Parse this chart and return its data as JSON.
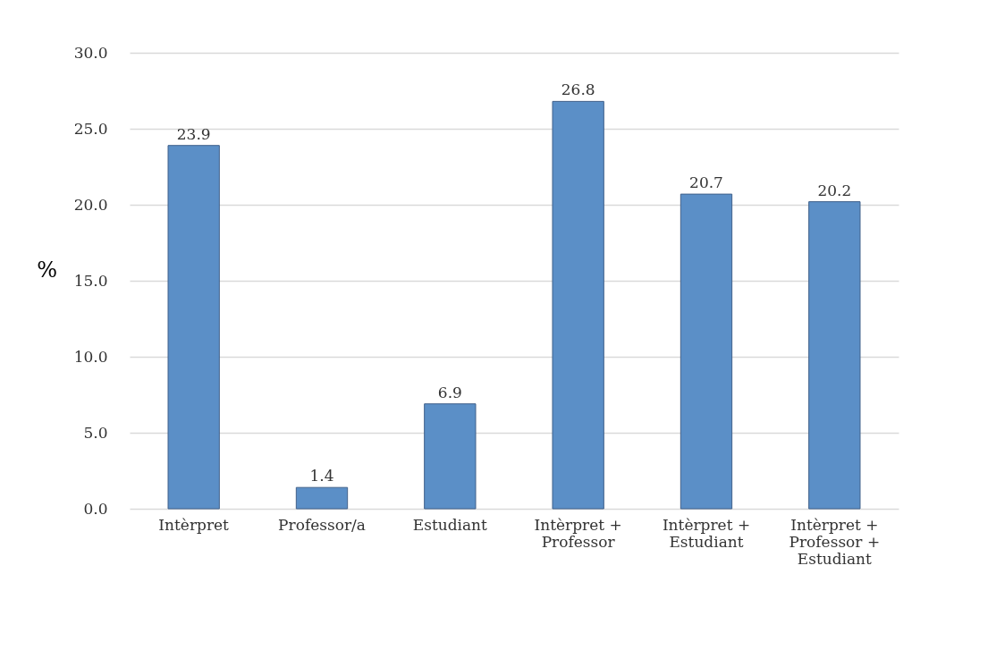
{
  "chart_data": {
    "type": "bar",
    "ylabel": "%",
    "categories": [
      "Intèrpret",
      "Professor/a",
      "Estudiant",
      "Intèrpret + Professor",
      "Intèrpret + Estudiant",
      "Intèrpret + Professor + Estudiant"
    ],
    "values": [
      23.9,
      1.4,
      6.9,
      26.8,
      20.7,
      20.2
    ],
    "color": "#5b8fc7",
    "ylim": [
      0,
      30
    ],
    "yticks": [
      {
        "value": 0,
        "label": "0.0"
      },
      {
        "value": 5,
        "label": "5.0"
      },
      {
        "value": 10,
        "label": "10.0"
      },
      {
        "value": 15,
        "label": "15.0"
      },
      {
        "value": 20,
        "label": "20.0"
      },
      {
        "value": 25,
        "label": "25.0"
      },
      {
        "value": 30,
        "label": "30.0"
      }
    ],
    "grid": "y",
    "data_labels": true
  }
}
